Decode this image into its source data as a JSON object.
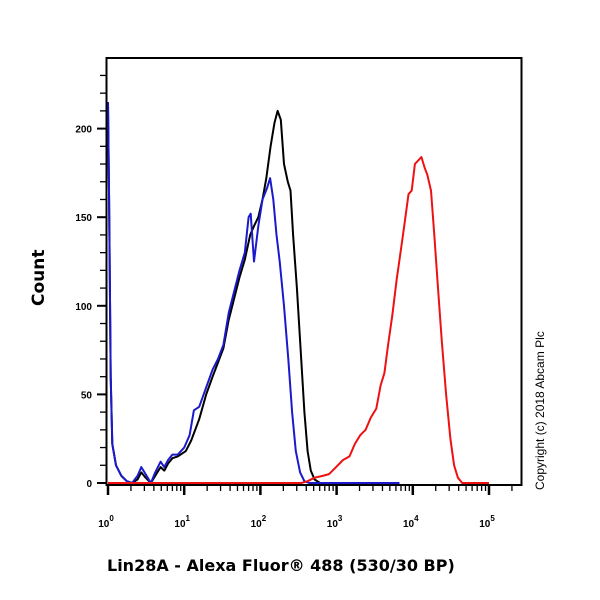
{
  "chart_data": {
    "type": "line",
    "title": "",
    "xlabel": "Lin28A - Alexa Fluor® 488 (530/30 BP)",
    "ylabel": "Count",
    "xscale": "log",
    "xlim_log10": [
      0,
      5.43
    ],
    "ylim": [
      0,
      240
    ],
    "x_tick_labels": [
      {
        "base": "10",
        "exp": "0",
        "log10": 0
      },
      {
        "base": "10",
        "exp": "1",
        "log10": 1
      },
      {
        "base": "10",
        "exp": "2",
        "log10": 2
      },
      {
        "base": "10",
        "exp": "3",
        "log10": 3
      },
      {
        "base": "10",
        "exp": "4",
        "log10": 4
      },
      {
        "base": "10",
        "exp": "5",
        "log10": 5
      }
    ],
    "y_ticks": [
      0,
      50,
      100,
      150,
      200
    ],
    "grid": false,
    "legend": null,
    "annotation": "Copyright (c) 2018 Abcam Plc",
    "series": [
      {
        "name": "black-control",
        "color": "#000000",
        "points_log10_count": [
          [
            0.0,
            215
          ],
          [
            0.02,
            160
          ],
          [
            0.05,
            60
          ],
          [
            0.08,
            22
          ],
          [
            0.15,
            10
          ],
          [
            0.25,
            4
          ],
          [
            0.35,
            1
          ],
          [
            0.45,
            0
          ],
          [
            0.55,
            2
          ],
          [
            0.62,
            6
          ],
          [
            0.7,
            3
          ],
          [
            0.8,
            0
          ],
          [
            0.88,
            4
          ],
          [
            0.98,
            9
          ],
          [
            1.05,
            7
          ],
          [
            1.12,
            11
          ],
          [
            1.2,
            14
          ],
          [
            1.3,
            15
          ],
          [
            1.45,
            18
          ],
          [
            1.55,
            24
          ],
          [
            1.7,
            36
          ],
          [
            1.83,
            50
          ],
          [
            1.95,
            60
          ],
          [
            2.05,
            68
          ],
          [
            2.15,
            76
          ],
          [
            2.25,
            92
          ],
          [
            2.35,
            104
          ],
          [
            2.45,
            116
          ],
          [
            2.55,
            126
          ],
          [
            2.65,
            140
          ],
          [
            2.72,
            145
          ],
          [
            2.8,
            150
          ],
          [
            2.88,
            160
          ],
          [
            2.95,
            172
          ],
          [
            3.03,
            190
          ],
          [
            3.1,
            203
          ],
          [
            3.16,
            210
          ],
          [
            3.22,
            205
          ],
          [
            3.28,
            180
          ],
          [
            3.35,
            170
          ],
          [
            3.4,
            165
          ],
          [
            3.45,
            140
          ],
          [
            3.52,
            110
          ],
          [
            3.6,
            70
          ],
          [
            3.66,
            40
          ],
          [
            3.72,
            18
          ],
          [
            3.78,
            7
          ],
          [
            3.85,
            2
          ],
          [
            3.95,
            0
          ],
          [
            5.43,
            0
          ]
        ]
      },
      {
        "name": "blue-isotype",
        "color": "#1a1acc",
        "points_log10_count": [
          [
            0.0,
            215
          ],
          [
            0.02,
            160
          ],
          [
            0.05,
            60
          ],
          [
            0.08,
            22
          ],
          [
            0.15,
            10
          ],
          [
            0.25,
            4
          ],
          [
            0.35,
            1
          ],
          [
            0.45,
            0
          ],
          [
            0.55,
            4
          ],
          [
            0.62,
            9
          ],
          [
            0.7,
            5
          ],
          [
            0.8,
            0
          ],
          [
            0.88,
            6
          ],
          [
            0.98,
            12
          ],
          [
            1.05,
            9
          ],
          [
            1.12,
            13
          ],
          [
            1.2,
            16
          ],
          [
            1.3,
            16
          ],
          [
            1.42,
            20
          ],
          [
            1.52,
            27
          ],
          [
            1.6,
            41
          ],
          [
            1.7,
            43
          ],
          [
            1.83,
            54
          ],
          [
            1.95,
            64
          ],
          [
            2.05,
            70
          ],
          [
            2.15,
            78
          ],
          [
            2.25,
            96
          ],
          [
            2.35,
            108
          ],
          [
            2.45,
            120
          ],
          [
            2.55,
            130
          ],
          [
            2.62,
            150
          ],
          [
            2.66,
            152
          ],
          [
            2.72,
            125
          ],
          [
            2.8,
            145
          ],
          [
            2.88,
            160
          ],
          [
            2.96,
            166
          ],
          [
            3.02,
            172
          ],
          [
            3.08,
            160
          ],
          [
            3.14,
            140
          ],
          [
            3.2,
            125
          ],
          [
            3.28,
            100
          ],
          [
            3.36,
            70
          ],
          [
            3.43,
            40
          ],
          [
            3.5,
            18
          ],
          [
            3.58,
            6
          ],
          [
            3.66,
            1
          ],
          [
            3.75,
            0
          ],
          [
            5.43,
            0
          ]
        ]
      },
      {
        "name": "red-lin28a",
        "color": "#ee1111",
        "points_log10_count": [
          [
            0.0,
            0
          ],
          [
            3.6,
            0
          ],
          [
            3.72,
            1
          ],
          [
            3.85,
            3
          ],
          [
            4.0,
            4
          ],
          [
            4.12,
            5
          ],
          [
            4.25,
            9
          ],
          [
            4.38,
            13
          ],
          [
            4.5,
            15
          ],
          [
            4.6,
            22
          ],
          [
            4.7,
            27
          ],
          [
            4.8,
            30
          ],
          [
            4.9,
            37
          ],
          [
            5.0,
            42
          ],
          [
            5.08,
            55
          ],
          [
            5.15,
            62
          ],
          [
            5.22,
            78
          ],
          [
            5.3,
            95
          ],
          [
            5.38,
            115
          ],
          [
            5.45,
            130
          ],
          [
            5.52,
            145
          ],
          [
            5.6,
            163
          ],
          [
            5.66,
            165
          ],
          [
            5.72,
            180
          ],
          [
            5.78,
            182
          ],
          [
            5.84,
            184
          ],
          [
            5.9,
            178
          ],
          [
            5.95,
            174
          ],
          [
            6.02,
            165
          ],
          [
            6.08,
            140
          ],
          [
            6.15,
            110
          ],
          [
            6.22,
            80
          ],
          [
            6.3,
            50
          ],
          [
            6.38,
            25
          ],
          [
            6.45,
            10
          ],
          [
            6.52,
            3
          ],
          [
            6.6,
            0
          ],
          [
            7.1,
            0
          ]
        ]
      }
    ]
  },
  "labels": {
    "ylabel": "Count",
    "xlabel": "Lin28A - Alexa Fluor® 488 (530/30 BP)",
    "copyright": "Copyright (c) 2018 Abcam Plc",
    "yticks": [
      "0",
      "50",
      "100",
      "150",
      "200"
    ]
  }
}
